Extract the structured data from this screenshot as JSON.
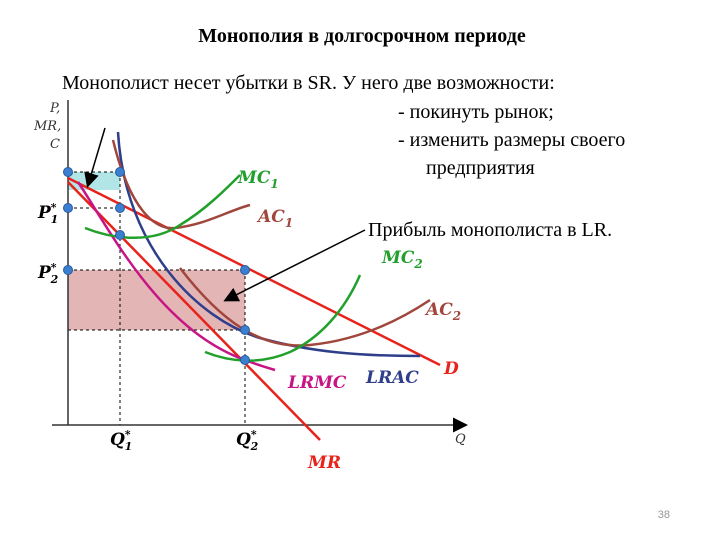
{
  "title": "Монополия в долгосрочном периоде",
  "intro": "Монополист несет убытки в SR. У него две возможности:",
  "options": [
    "- покинуть рынок;",
    "- изменить размеры своего",
    "предприятия"
  ],
  "profit_note": "Прибыль монополиста в LR.",
  "axes": {
    "y_label": [
      "P,",
      "MR,",
      "C"
    ],
    "x_label": "Q"
  },
  "prices": [
    {
      "name": "P",
      "sup": "*",
      "sub": "1"
    },
    {
      "name": "P",
      "sup": "*",
      "sub": "2"
    }
  ],
  "quantities": [
    {
      "name": "Q",
      "sup": "*",
      "sub": "1"
    },
    {
      "name": "Q",
      "sup": "*",
      "sub": "2"
    }
  ],
  "curves": [
    {
      "name": "MC",
      "sub": "1"
    },
    {
      "name": "AC",
      "sub": "1"
    },
    {
      "name": "MC",
      "sub": "2"
    },
    {
      "name": "AC",
      "sub": "2"
    },
    {
      "name": "LRMC"
    },
    {
      "name": "LRAC"
    },
    {
      "name": "D"
    },
    {
      "name": "MR"
    }
  ],
  "slide_number": "38"
}
